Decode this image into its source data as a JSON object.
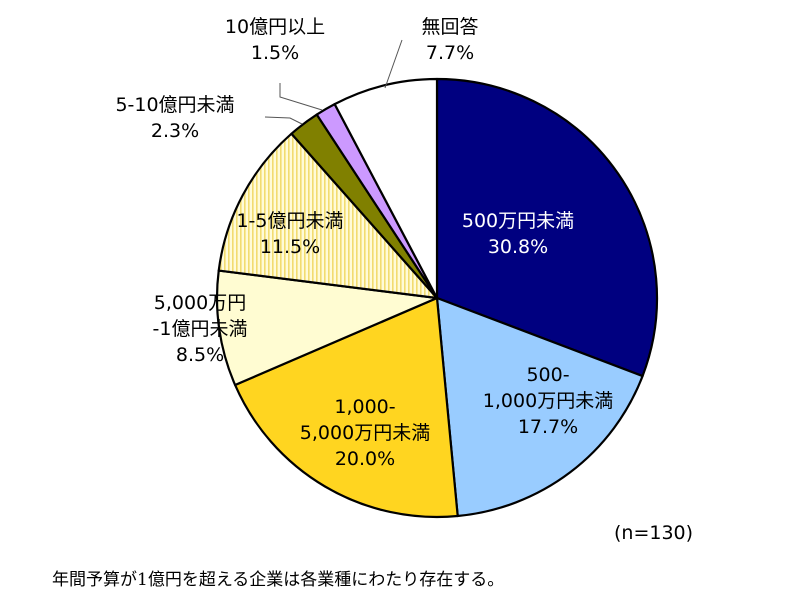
{
  "chart_data": {
    "type": "pie",
    "title": "",
    "sample_size_label": "(n=130)",
    "caption": "年間予算が1億円を超える企業は各業種にわたり存在する。",
    "start_angle_deg": 0,
    "direction": "clockwise",
    "slices": [
      {
        "label": "500万円未満",
        "label_lines": [
          "500万円未満"
        ],
        "value": 30.8,
        "value_label": "30.8%",
        "color": "#000080",
        "pattern": "solid"
      },
      {
        "label": "500-1,000万円未満",
        "label_lines": [
          "500-",
          "1,000万円未満"
        ],
        "value": 17.7,
        "value_label": "17.7%",
        "color": "#99CCFF",
        "pattern": "solid"
      },
      {
        "label": "1,000-5,000万円未満",
        "label_lines": [
          "1,000-",
          "5,000万円未満"
        ],
        "value": 20.0,
        "value_label": "20.0%",
        "color": "#FFD520",
        "pattern": "solid"
      },
      {
        "label": "5,000万円-1億円未満",
        "label_lines": [
          "5,000万円",
          "-1億円未満"
        ],
        "value": 8.5,
        "value_label": "8.5%",
        "color": "#FFFCD2",
        "pattern": "solid"
      },
      {
        "label": "1-5億円未満",
        "label_lines": [
          "1-5億円未満"
        ],
        "value": 11.5,
        "value_label": "11.5%",
        "color": "#FFF4B0",
        "pattern": "vertical-stripes"
      },
      {
        "label": "5-10億円未満",
        "label_lines": [
          "5-10億円未満"
        ],
        "value": 2.3,
        "value_label": "2.3%",
        "color": "#808000",
        "pattern": "solid"
      },
      {
        "label": "10億円以上",
        "label_lines": [
          "10億円以上"
        ],
        "value": 1.5,
        "value_label": "1.5%",
        "color": "#CC99FF",
        "pattern": "solid"
      },
      {
        "label": "無回答",
        "label_lines": [
          "無回答"
        ],
        "value": 7.7,
        "value_label": "7.7%",
        "color": "#FFFFFF",
        "pattern": "solid"
      }
    ]
  }
}
